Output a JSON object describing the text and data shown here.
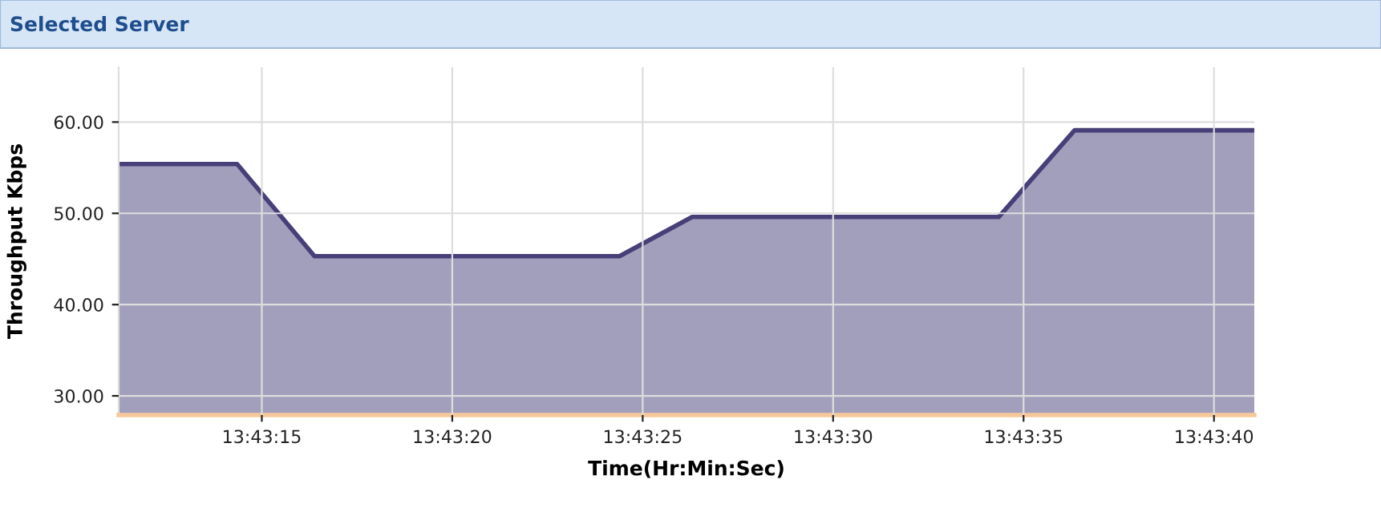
{
  "chart_data": {
    "type": "area",
    "title": "Selected Server",
    "xlabel": "Time(Hr:Min:Sec)",
    "ylabel": "Throughput Kbps",
    "x": [
      13.719789,
      13.720653,
      13.721217,
      13.723442,
      13.723972,
      13.726208,
      13.726761,
      13.728072
    ],
    "series": [
      {
        "color": "#463f78",
        "values": [
          55.4,
          55.4,
          45.3,
          45.3,
          49.6,
          49.6,
          59.1,
          59.1
        ]
      }
    ],
    "xlim": [
      13.719789,
      13.728072
    ],
    "xticks": [
      {
        "value": 13.720833,
        "label": "13:43:15"
      },
      {
        "value": 13.722222,
        "label": "13:43:20"
      },
      {
        "value": 13.723611,
        "label": "13:43:25"
      },
      {
        "value": 13.725,
        "label": "13:43:30"
      },
      {
        "value": 13.726389,
        "label": "13:43:35"
      },
      {
        "value": 13.727778,
        "label": "13:43:40"
      }
    ],
    "ylim": [
      27.9,
      66
    ],
    "yticks": [
      {
        "value": 30,
        "label": "30.00"
      },
      {
        "value": 40,
        "label": "40.00"
      },
      {
        "value": 50,
        "label": "50.00"
      },
      {
        "value": 60,
        "label": "60.00"
      }
    ],
    "grid": true,
    "legend": false,
    "marker": "none",
    "line_style": "solid"
  }
}
